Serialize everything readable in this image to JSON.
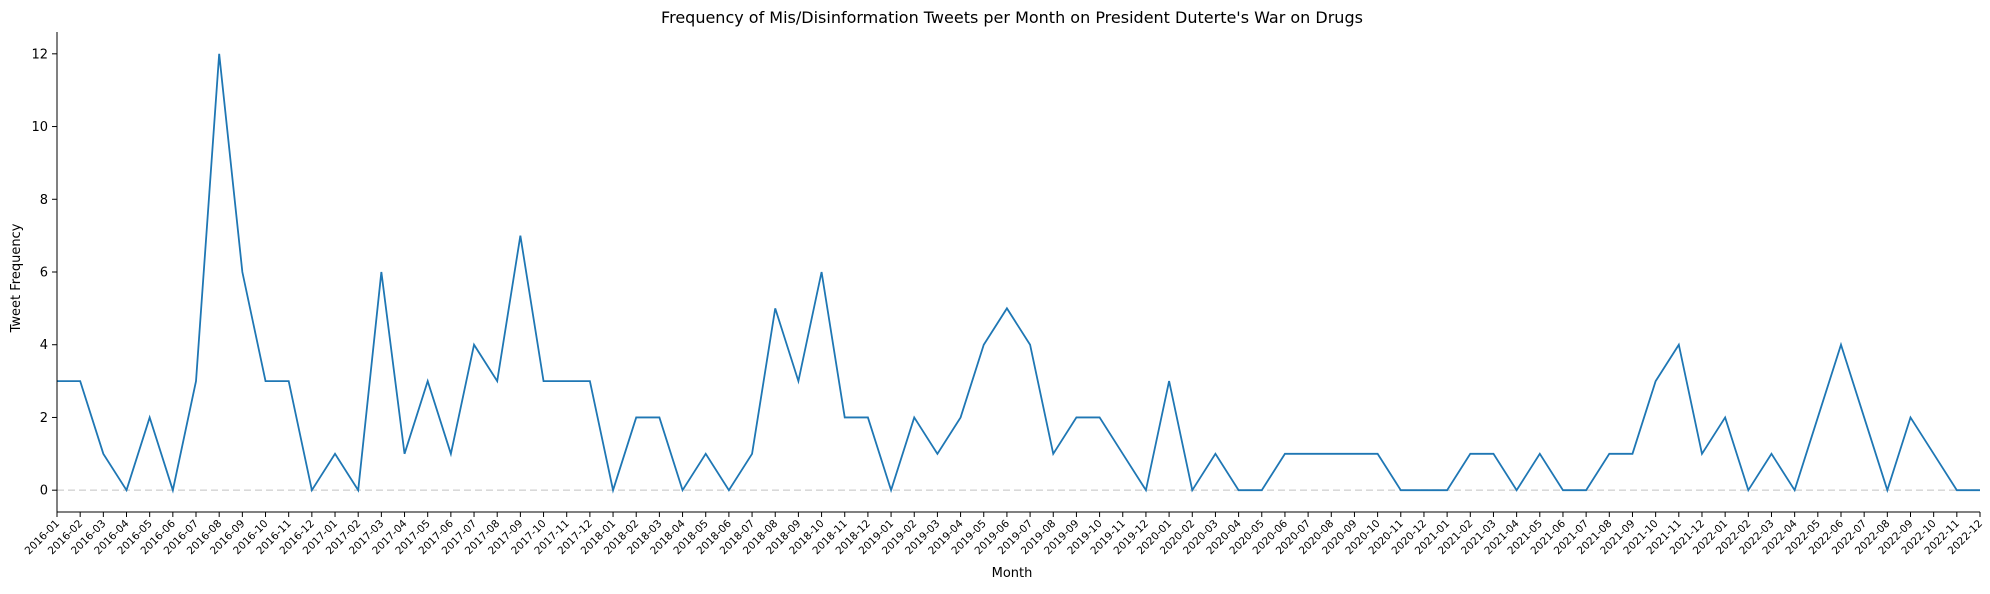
{
  "chart_data": {
    "type": "line",
    "title": "Frequency of Mis/Disinformation Tweets per Month on President Duterte's War on Drugs",
    "xlabel": "Month",
    "ylabel": "Tweet Frequency",
    "x": [
      "2016-01",
      "2016-02",
      "2016-03",
      "2016-04",
      "2016-05",
      "2016-06",
      "2016-07",
      "2016-08",
      "2016-09",
      "2016-10",
      "2016-11",
      "2016-12",
      "2017-01",
      "2017-02",
      "2017-03",
      "2017-04",
      "2017-05",
      "2017-06",
      "2017-07",
      "2017-08",
      "2017-09",
      "2017-10",
      "2017-11",
      "2017-12",
      "2018-01",
      "2018-02",
      "2018-03",
      "2018-04",
      "2018-05",
      "2018-06",
      "2018-07",
      "2018-08",
      "2018-09",
      "2018-10",
      "2018-11",
      "2018-12",
      "2019-01",
      "2019-02",
      "2019-03",
      "2019-04",
      "2019-05",
      "2019-06",
      "2019-07",
      "2019-08",
      "2019-09",
      "2019-10",
      "2019-11",
      "2019-12",
      "2020-01",
      "2020-02",
      "2020-03",
      "2020-04",
      "2020-05",
      "2020-06",
      "2020-07",
      "2020-08",
      "2020-09",
      "2020-10",
      "2020-11",
      "2020-12",
      "2021-01",
      "2021-02",
      "2021-03",
      "2021-04",
      "2021-05",
      "2021-06",
      "2021-07",
      "2021-08",
      "2021-09",
      "2021-10",
      "2021-11",
      "2021-12",
      "2022-01",
      "2022-02",
      "2022-03",
      "2022-04",
      "2022-05",
      "2022-06",
      "2022-07",
      "2022-08",
      "2022-09",
      "2022-10",
      "2022-11",
      "2022-12"
    ],
    "series": [
      {
        "values": [
          3,
          3,
          1,
          0,
          2,
          0,
          3,
          12,
          6,
          3,
          3,
          0,
          1,
          0,
          6,
          1,
          3,
          1,
          4,
          3,
          7,
          3,
          3,
          3,
          0,
          2,
          2,
          0,
          1,
          0,
          1,
          5,
          3,
          6,
          2,
          2,
          0,
          2,
          1,
          2,
          4,
          5,
          4,
          1,
          2,
          2,
          1,
          0,
          3,
          0,
          1,
          0,
          0,
          1,
          1,
          1,
          1,
          1,
          0,
          0,
          0,
          1,
          1,
          0,
          1,
          0,
          0,
          1,
          1,
          3,
          4,
          1,
          2,
          0,
          1,
          0,
          2,
          4,
          2,
          0,
          2,
          1,
          0,
          0
        ],
        "color": "#1f77b4"
      }
    ],
    "yticks": [
      0,
      2,
      4,
      6,
      8,
      10,
      12
    ],
    "ylim": [
      -0.6,
      12.6
    ],
    "grid": false,
    "reference_line": {
      "y": 0,
      "style": "dashed",
      "color": "#d9d9d9"
    }
  }
}
